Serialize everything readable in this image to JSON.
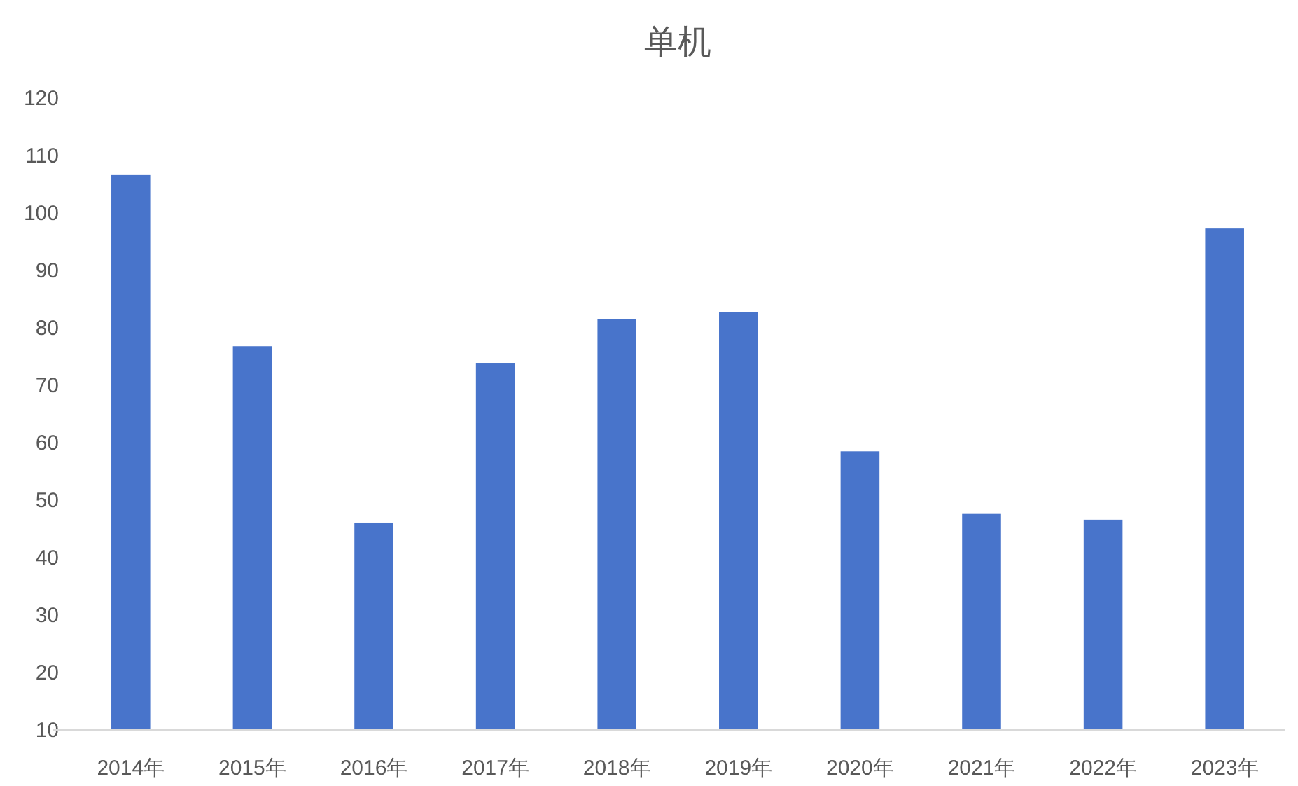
{
  "chart_data": {
    "type": "bar",
    "title": "单机",
    "categories": [
      "2014年",
      "2015年",
      "2016年",
      "2017年",
      "2018年",
      "2019年",
      "2020年",
      "2021年",
      "2022年",
      "2023年"
    ],
    "values": [
      106.6,
      76.8,
      46.1,
      73.9,
      81.5,
      82.7,
      58.5,
      47.6,
      46.6,
      97.3
    ],
    "color": "#4874cb",
    "ylim": [
      10,
      120
    ],
    "yticks": [
      10,
      20,
      30,
      40,
      50,
      60,
      70,
      80,
      90,
      100,
      110,
      120
    ],
    "grid": false
  }
}
